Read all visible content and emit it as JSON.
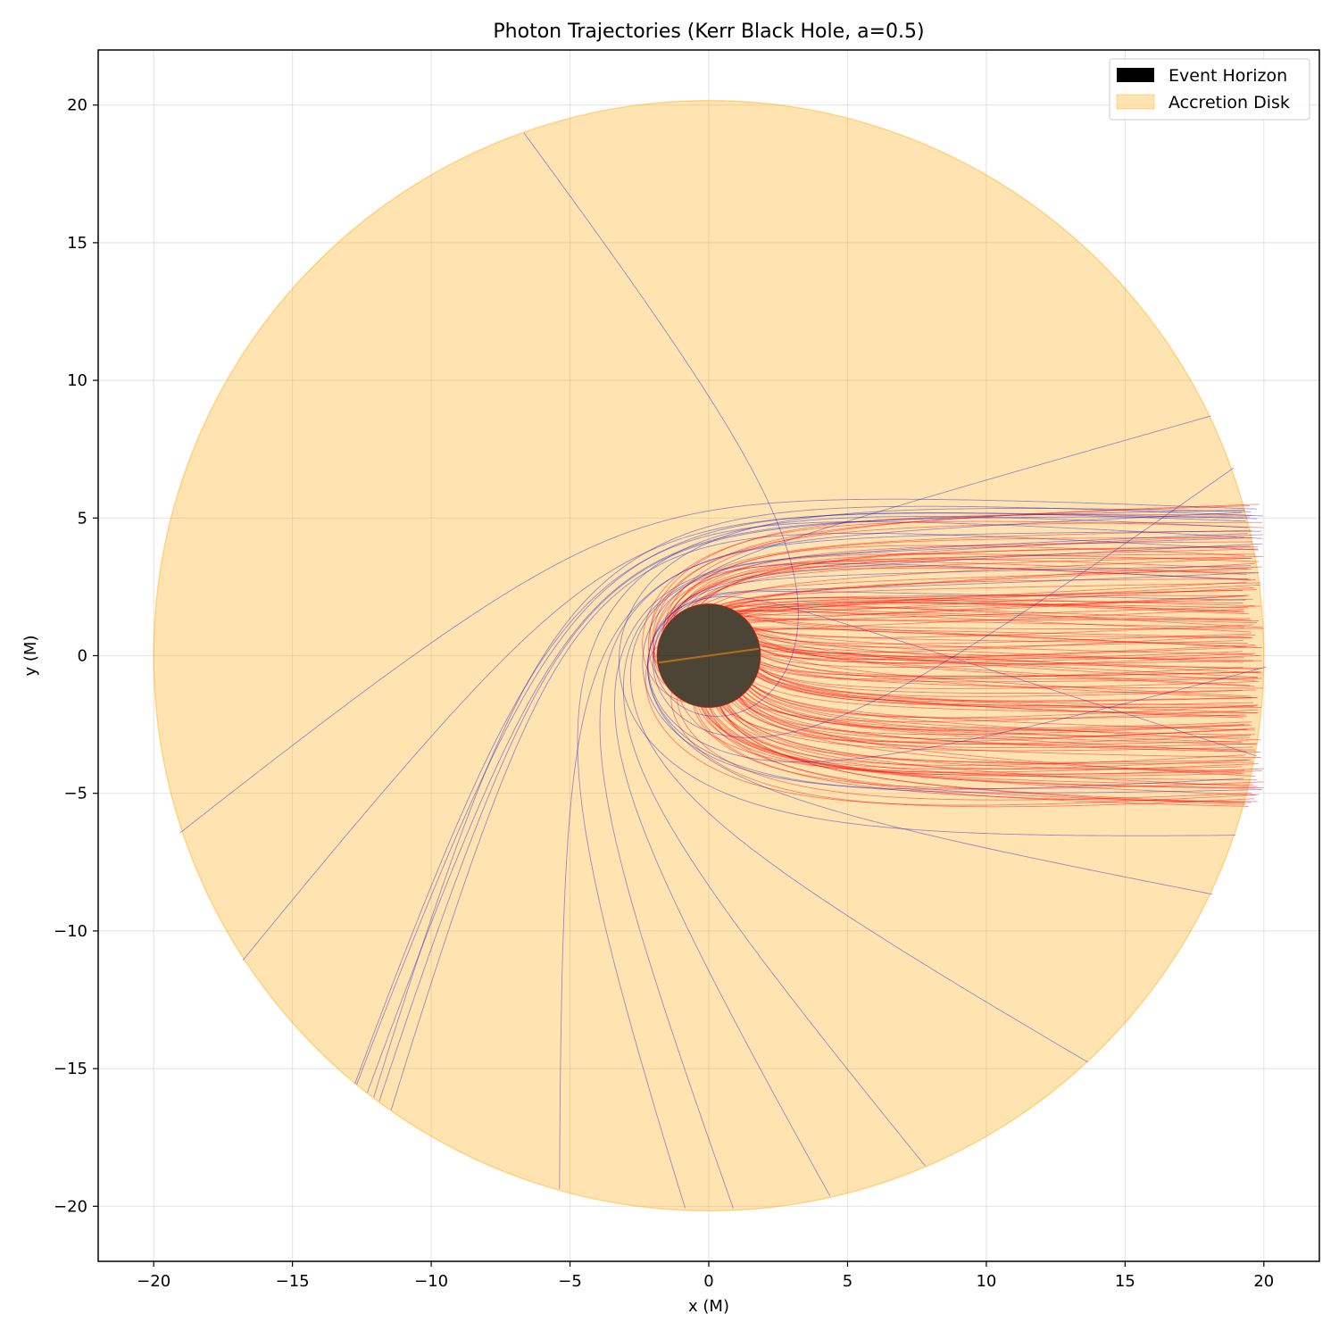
{
  "chart_data": {
    "type": "line",
    "title": "Photon Trajectories (Kerr Black Hole, a=0.5)",
    "xlabel": "x (M)",
    "ylabel": "y (M)",
    "xlim": [
      -22,
      22
    ],
    "ylim": [
      -22,
      22
    ],
    "xticks": [
      -20,
      -15,
      -10,
      -5,
      0,
      5,
      10,
      15,
      20
    ],
    "yticks": [
      -20,
      -15,
      -10,
      -5,
      0,
      5,
      10,
      15,
      20
    ],
    "xtick_labels": [
      "−20",
      "−15",
      "−10",
      "−5",
      "0",
      "5",
      "10",
      "15",
      "20"
    ],
    "ytick_labels": [
      "−20",
      "−15",
      "−10",
      "−5",
      "0",
      "5",
      "10",
      "15",
      "20"
    ],
    "grid": true,
    "legend_position": "top-right",
    "spin_parameter": 0.5,
    "event_horizon": {
      "name": "Event Horizon",
      "center": [
        0,
        0
      ],
      "radius": 1.87,
      "color": "#000000"
    },
    "accretion_disk": {
      "name": "Accretion Disk",
      "center": [
        0,
        0
      ],
      "radius": 20,
      "color": "#ffa500"
    },
    "trajectory_groups": [
      {
        "kind": "escaping",
        "color": "#0000cc"
      },
      {
        "kind": "captured",
        "color": "#ff0000"
      }
    ],
    "photon_source_x": 20,
    "impact_parameter_range": [
      -5.5,
      5.5
    ]
  }
}
